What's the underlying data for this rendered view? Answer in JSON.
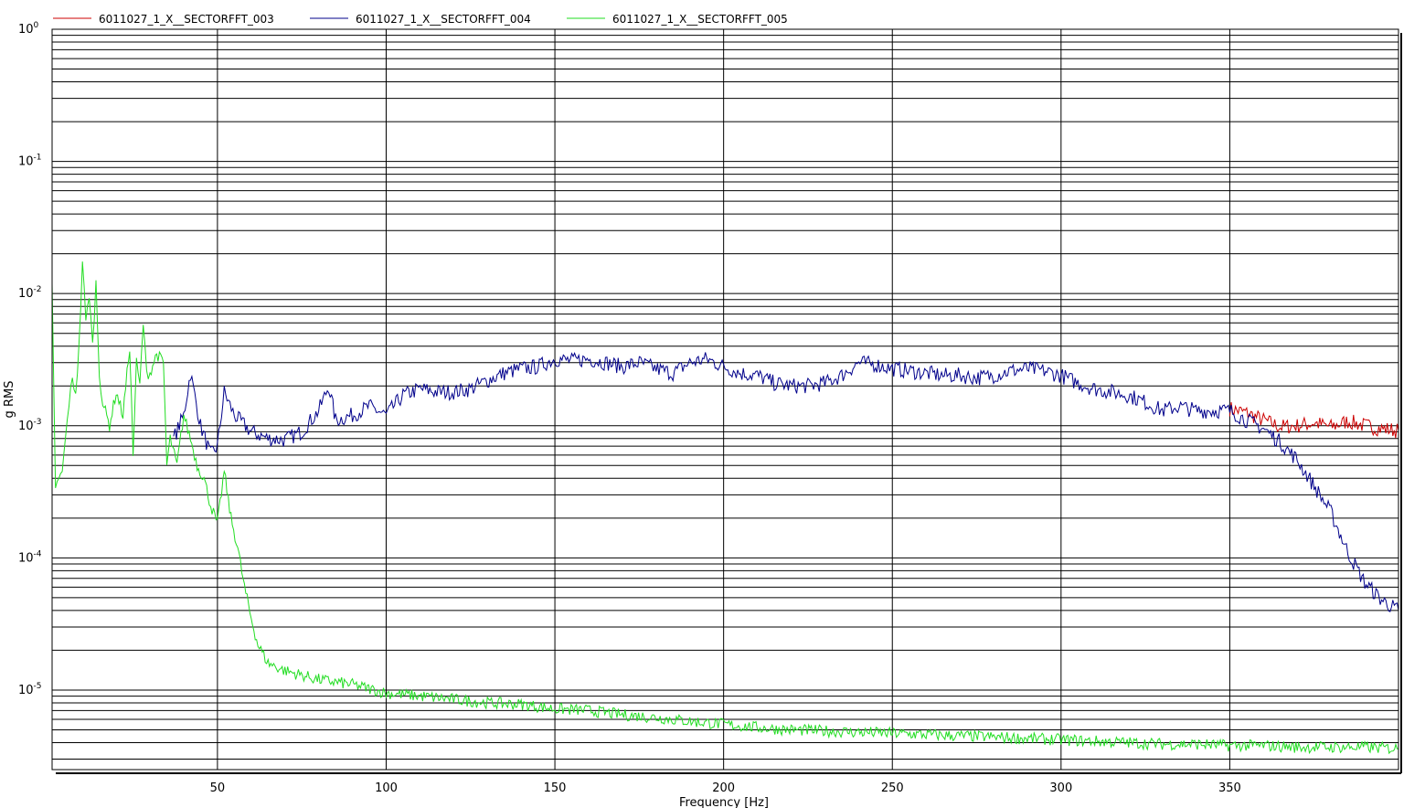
{
  "chart_data": {
    "type": "line",
    "title": "",
    "xlabel": "Frequency [Hz]",
    "ylabel": "g RMS",
    "xlim": [
      1,
      400
    ],
    "ylim": [
      2.5e-06,
      1
    ],
    "yscale": "log",
    "grid": true,
    "legend_position": "top",
    "x_ticks": [
      50,
      100,
      150,
      200,
      250,
      300,
      350
    ],
    "y_ticks": [
      {
        "value": 1,
        "base": "10",
        "exp": "0"
      },
      {
        "value": 0.1,
        "base": "10",
        "exp": "-1"
      },
      {
        "value": 0.01,
        "base": "10",
        "exp": "-2"
      },
      {
        "value": 0.001,
        "base": "10",
        "exp": "-3"
      },
      {
        "value": 0.0001,
        "base": "10",
        "exp": "-4"
      },
      {
        "value": 1e-05,
        "base": "10",
        "exp": "-5"
      }
    ],
    "series": [
      {
        "name": "6011027_1_X__SECTORFFT_003",
        "color": "#cc0000",
        "x": [
          350,
          355,
          360,
          365,
          370,
          375,
          380,
          385,
          390,
          395,
          400
        ],
        "y": [
          0.00135,
          0.00125,
          0.0011,
          0.00098,
          0.001,
          0.00105,
          0.00098,
          0.00108,
          0.001,
          0.00095,
          0.00092
        ]
      },
      {
        "name": "6011027_1_X__SECTORFFT_004",
        "color": "#00008b",
        "x": [
          37,
          40,
          42,
          45,
          48,
          50,
          52,
          55,
          60,
          65,
          70,
          75,
          80,
          83,
          85,
          90,
          95,
          100,
          105,
          110,
          115,
          120,
          125,
          130,
          135,
          140,
          145,
          150,
          155,
          160,
          165,
          170,
          175,
          180,
          185,
          190,
          195,
          200,
          205,
          210,
          215,
          220,
          225,
          230,
          235,
          240,
          245,
          250,
          255,
          260,
          265,
          270,
          275,
          280,
          285,
          290,
          295,
          300,
          305,
          310,
          315,
          320,
          325,
          330,
          335,
          340,
          345,
          350,
          355,
          360,
          365,
          370,
          375,
          380,
          385,
          390,
          395,
          400
        ],
        "y": [
          0.0008,
          0.0012,
          0.0025,
          0.001,
          0.0006,
          0.0007,
          0.0018,
          0.0012,
          0.0009,
          0.0008,
          0.00078,
          0.0009,
          0.0013,
          0.002,
          0.0011,
          0.0012,
          0.0014,
          0.0012,
          0.0017,
          0.0019,
          0.0018,
          0.0018,
          0.0019,
          0.0022,
          0.0025,
          0.0027,
          0.0028,
          0.0032,
          0.0031,
          0.0032,
          0.003,
          0.0028,
          0.003,
          0.0027,
          0.0025,
          0.003,
          0.0032,
          0.0028,
          0.0025,
          0.0024,
          0.0021,
          0.002,
          0.002,
          0.0021,
          0.0024,
          0.003,
          0.0029,
          0.0027,
          0.0026,
          0.0025,
          0.0024,
          0.0024,
          0.0023,
          0.0024,
          0.0026,
          0.0027,
          0.0026,
          0.0024,
          0.0021,
          0.0019,
          0.0018,
          0.0017,
          0.0015,
          0.0013,
          0.0014,
          0.0013,
          0.0013,
          0.0013,
          0.0011,
          0.00095,
          0.00075,
          0.00055,
          0.00035,
          0.00022,
          0.00011,
          6.5e-05,
          4.8e-05,
          4e-05
        ]
      },
      {
        "name": "6011027_1_X__SECTORFFT_005",
        "color": "#22dd22",
        "x": [
          1,
          2,
          3,
          4,
          5,
          6,
          7,
          8,
          9,
          10,
          11,
          12,
          13,
          14,
          15,
          16,
          18,
          20,
          22,
          24,
          25,
          26,
          27,
          28,
          29,
          30,
          32,
          34,
          35,
          36,
          38,
          40,
          42,
          44,
          46,
          48,
          50,
          52,
          54,
          56,
          58,
          60,
          62,
          65,
          70,
          80,
          90,
          100,
          110,
          120,
          130,
          140,
          150,
          160,
          170,
          180,
          190,
          200,
          210,
          220,
          230,
          240,
          250,
          260,
          270,
          280,
          290,
          300,
          310,
          320,
          330,
          340,
          350,
          360,
          370,
          380,
          390,
          400
        ],
        "y": [
          0.011,
          0.00035,
          0.00038,
          0.00045,
          0.0008,
          0.0015,
          0.0022,
          0.0018,
          0.004,
          0.018,
          0.006,
          0.01,
          0.004,
          0.012,
          0.0025,
          0.0015,
          0.001,
          0.0018,
          0.0012,
          0.004,
          0.0006,
          0.003,
          0.002,
          0.006,
          0.0025,
          0.0025,
          0.0035,
          0.003,
          0.0005,
          0.0008,
          0.0005,
          0.0012,
          0.0008,
          0.0005,
          0.0004,
          0.00025,
          0.00018,
          0.00045,
          0.0002,
          0.00012,
          6e-05,
          3.5e-05,
          2.2e-05,
          1.6e-05,
          1.4e-05,
          1.2e-05,
          1.1e-05,
          9.5e-06,
          9e-06,
          8.5e-06,
          8e-06,
          7.8e-06,
          7.2e-06,
          7e-06,
          6.5e-06,
          6.2e-06,
          5.8e-06,
          5.5e-06,
          5.2e-06,
          5e-06,
          4.9e-06,
          4.8e-06,
          4.7e-06,
          4.6e-06,
          4.5e-06,
          4.4e-06,
          4.3e-06,
          4.2e-06,
          4.1e-06,
          4e-06,
          3.9e-06,
          3.9e-06,
          3.8e-06,
          3.8e-06,
          3.7e-06,
          3.7e-06,
          3.7e-06,
          3.6e-06
        ]
      }
    ]
  }
}
